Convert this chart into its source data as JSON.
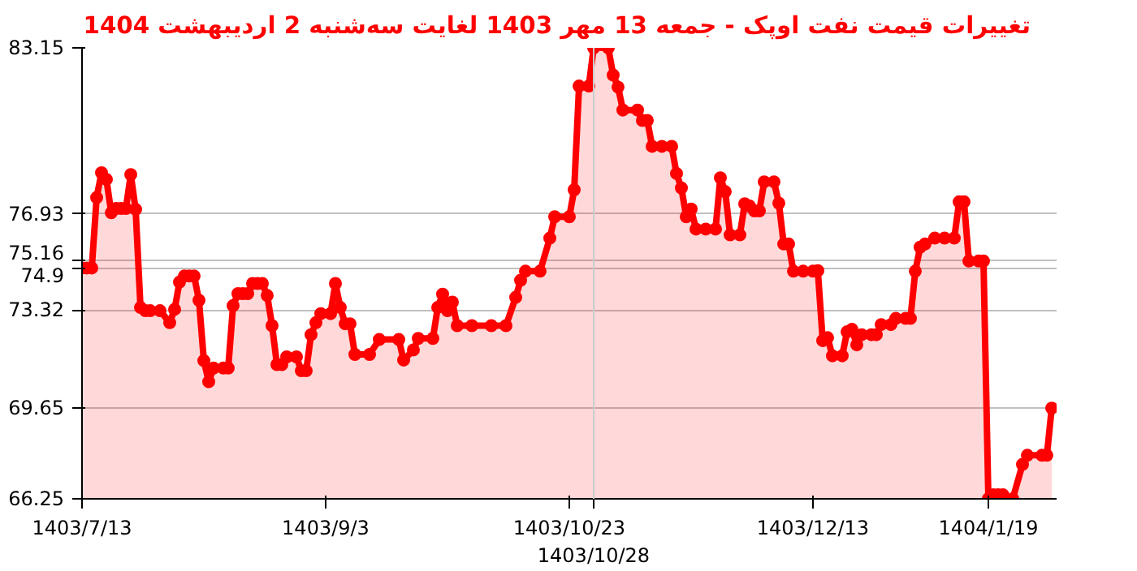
{
  "chart_data": {
    "type": "area",
    "title": "تغییرات قیمت نفت اوپک - جمعه  13 مهر 1403 لغایت  سه‌شنبه  2 اردیبهشت 1404",
    "categories": [
      "1403/7/13",
      null,
      null,
      null,
      null,
      null,
      null,
      null,
      null,
      null,
      null,
      null,
      null,
      null,
      null,
      null,
      null,
      null,
      null,
      null,
      null,
      null,
      null,
      null,
      null,
      null,
      null,
      null,
      null,
      null,
      null,
      null,
      null,
      null,
      null,
      null,
      null,
      null,
      null,
      null,
      null,
      null,
      null,
      null,
      null,
      null,
      null,
      null,
      null,
      null,
      "1403/9/3",
      null,
      null,
      null,
      null,
      null,
      null,
      null,
      null,
      null,
      null,
      null,
      null,
      null,
      null,
      null,
      null,
      null,
      null,
      null,
      null,
      null,
      null,
      null,
      null,
      null,
      null,
      null,
      null,
      null,
      null,
      null,
      null,
      null,
      null,
      null,
      null,
      null,
      null,
      null,
      null,
      null,
      null,
      null,
      null,
      null,
      null,
      null,
      null,
      null,
      "1403/10/23",
      null,
      null,
      null,
      null,
      "1403/10/28",
      null,
      null,
      null,
      null,
      null,
      null,
      null,
      null,
      null,
      null,
      null,
      null,
      null,
      null,
      null,
      null,
      null,
      null,
      null,
      null,
      null,
      null,
      null,
      null,
      null,
      null,
      null,
      null,
      null,
      null,
      null,
      null,
      null,
      null,
      null,
      null,
      null,
      null,
      null,
      null,
      null,
      null,
      null,
      null,
      "1403/12/13",
      null,
      null,
      null,
      null,
      null,
      null,
      null,
      null,
      null,
      null,
      null,
      null,
      null,
      null,
      null,
      null,
      null,
      null,
      null,
      null,
      null,
      null,
      null,
      null,
      null,
      null,
      null,
      null,
      null,
      null,
      null,
      null,
      null,
      null,
      null,
      "1404/1/19",
      null,
      null,
      null,
      null,
      null,
      null,
      null,
      null,
      null,
      null,
      null,
      null,
      null,
      null
    ],
    "series": [
      {
        "color": "#ff0000",
        "values": [
          74.9,
          74.9,
          74.9,
          77.54,
          78.47,
          78.22,
          76.97,
          77.13,
          77.13,
          77.13,
          78.4,
          77.1,
          73.42,
          73.3,
          73.3,
          null,
          73.3,
          null,
          72.85,
          73.35,
          74.37,
          74.6,
          74.6,
          74.6,
          73.69,
          71.43,
          70.64,
          71.15,
          null,
          71.15,
          71.15,
          73.49,
          73.94,
          73.94,
          73.94,
          74.32,
          74.32,
          74.32,
          73.87,
          72.74,
          71.28,
          71.28,
          71.57,
          null,
          71.57,
          71.05,
          71.05,
          72.4,
          72.85,
          73.19,
          null,
          73.19,
          74.32,
          73.42,
          72.81,
          72.81,
          71.66,
          null,
          null,
          71.66,
          null,
          72.22,
          null,
          null,
          null,
          72.22,
          71.45,
          null,
          71.83,
          72.26,
          null,
          null,
          72.26,
          73.42,
          73.92,
          73.3,
          73.62,
          72.74,
          null,
          null,
          72.74,
          null,
          null,
          null,
          72.74,
          null,
          null,
          72.74,
          null,
          73.8,
          74.44,
          74.78,
          null,
          null,
          74.78,
          null,
          76.02,
          76.82,
          null,
          null,
          76.82,
          77.83,
          81.72,
          null,
          81.72,
          83.15,
          null,
          null,
          83.15,
          82.13,
          81.68,
          80.82,
          null,
          null,
          80.82,
          80.43,
          80.43,
          79.46,
          null,
          79.46,
          null,
          79.46,
          78.44,
          77.9,
          76.82,
          77.11,
          76.36,
          null,
          76.36,
          null,
          76.36,
          78.28,
          77.76,
          76.14,
          null,
          76.14,
          77.31,
          77.22,
          77.04,
          77.04,
          78.13,
          null,
          78.13,
          77.33,
          75.8,
          75.8,
          74.78,
          null,
          74.78,
          null,
          74.78,
          74.8,
          72.18,
          72.29,
          71.61,
          null,
          71.61,
          72.51,
          72.6,
          72.02,
          72.4,
          null,
          72.4,
          72.4,
          72.78,
          null,
          72.78,
          73.01,
          null,
          73.01,
          73.01,
          74.78,
          75.68,
          75.8,
          null,
          76.02,
          null,
          76.02,
          null,
          76.02,
          77.38,
          77.38,
          75.16,
          null,
          75.16,
          75.16,
          66.25,
          66.4,
          66.4,
          66.4,
          null,
          66.25,
          null,
          67.54,
          67.88,
          null,
          null,
          67.88,
          67.88,
          69.65,
          null
        ]
      }
    ],
    "ylim": [
      66.25,
      83.15
    ],
    "yticks": [
      66.25,
      69.65,
      73.32,
      74.9,
      75.16,
      76.93,
      83.15
    ],
    "ref_lines": [
      {
        "axis": "x",
        "value": "1403/10/28",
        "color": "#cccccc"
      }
    ],
    "grid": "y",
    "marker": "circle",
    "line_style": "solid"
  }
}
